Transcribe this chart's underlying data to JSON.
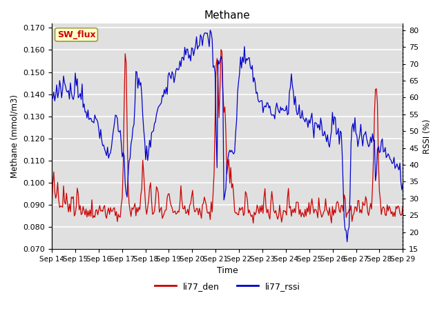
{
  "title": "Methane",
  "xlabel": "Time",
  "ylabel_left": "Methane (mmol/m3)",
  "ylabel_right": "RSSI (%)",
  "ylim_left": [
    0.07,
    0.172
  ],
  "ylim_right": [
    15,
    82
  ],
  "yticks_left": [
    0.07,
    0.08,
    0.09,
    0.1,
    0.11,
    0.12,
    0.13,
    0.14,
    0.15,
    0.16,
    0.17
  ],
  "yticks_right": [
    15,
    20,
    25,
    30,
    35,
    40,
    45,
    50,
    55,
    60,
    65,
    70,
    75,
    80
  ],
  "xtick_labels": [
    "Sep 14",
    "Sep 15",
    "Sep 16",
    "Sep 17",
    "Sep 18",
    "Sep 19",
    "Sep 20",
    "Sep 21",
    "Sep 22",
    "Sep 23",
    "Sep 24",
    "Sep 25",
    "Sep 26",
    "Sep 27",
    "Sep 28",
    "Sep 29"
  ],
  "color_red": "#cc0000",
  "color_blue": "#0000cc",
  "bg_color": "#e0e0e0",
  "legend_label_red": "li77_den",
  "legend_label_blue": "li77_rssi",
  "annotation_text": "SW_flux",
  "annotation_bg": "#ffffcc",
  "annotation_border": "#999944"
}
